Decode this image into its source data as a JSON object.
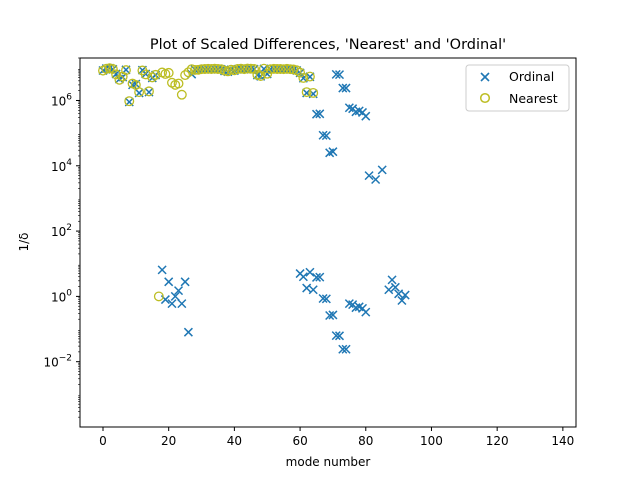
{
  "chart_data": {
    "type": "scatter",
    "title": "Plot of Scaled Differences, 'Nearest' and 'Ordinal'",
    "xlabel": "mode number",
    "ylabel": "1/δ",
    "xlim": [
      -7,
      144
    ],
    "ylim": [
      0.0001,
      20000000
    ],
    "yscale": "log",
    "grid": false,
    "legend_position": "top-right",
    "x_ticks": [
      0,
      20,
      40,
      60,
      80,
      100,
      120,
      140
    ],
    "y_ticks": [
      {
        "value": 0.01,
        "base": "10",
        "exp": "−2"
      },
      {
        "value": 1,
        "base": "10",
        "exp": "0"
      },
      {
        "value": 100,
        "base": "10",
        "exp": "2"
      },
      {
        "value": 10000,
        "base": "10",
        "exp": "4"
      },
      {
        "value": 1000000,
        "base": "10",
        "exp": "6"
      }
    ],
    "series": [
      {
        "name": "Ordinal",
        "marker": "x",
        "color": "#1f77b4",
        "points": [
          [
            0,
            8300000
          ],
          [
            1,
            9500000
          ],
          [
            2,
            9800000
          ],
          [
            3,
            9000000
          ],
          [
            4,
            6500000
          ],
          [
            5,
            4500000
          ],
          [
            6,
            5200000
          ],
          [
            7,
            8700000
          ],
          [
            8,
            900000
          ],
          [
            9,
            3000000
          ],
          [
            10,
            3200000
          ],
          [
            11,
            1700000
          ],
          [
            12,
            8500000
          ],
          [
            13,
            6500000
          ],
          [
            14,
            1800000
          ],
          [
            15,
            4900000
          ],
          [
            16,
            6000000
          ],
          [
            18,
            6.5
          ],
          [
            19,
            0.8
          ],
          [
            20,
            2.8
          ],
          [
            21,
            0.6
          ],
          [
            22,
            1.0
          ],
          [
            23,
            1.5
          ],
          [
            24,
            0.6
          ],
          [
            25,
            2.8
          ],
          [
            26,
            0.08
          ],
          [
            27,
            6400000
          ],
          [
            28,
            8800000
          ],
          [
            29,
            8900000
          ],
          [
            30,
            8900000
          ],
          [
            31,
            9000000
          ],
          [
            32,
            9100000
          ],
          [
            33,
            9000000
          ],
          [
            34,
            9200000
          ],
          [
            35,
            9100000
          ],
          [
            36,
            9000000
          ],
          [
            37,
            8000000
          ],
          [
            38,
            7600000
          ],
          [
            39,
            8700000
          ],
          [
            40,
            8200000
          ],
          [
            41,
            9100000
          ],
          [
            42,
            9300000
          ],
          [
            43,
            9000000
          ],
          [
            44,
            9400000
          ],
          [
            45,
            9300000
          ],
          [
            46,
            9100000
          ],
          [
            47,
            6000000
          ],
          [
            48,
            5500000
          ],
          [
            49,
            9300000
          ],
          [
            50,
            6500000
          ],
          [
            51,
            9000000
          ],
          [
            52,
            9200000
          ],
          [
            53,
            9100000
          ],
          [
            54,
            9100000
          ],
          [
            55,
            9000000
          ],
          [
            56,
            9200000
          ],
          [
            57,
            9000000
          ],
          [
            58,
            8800000
          ],
          [
            59,
            8300000
          ],
          [
            60,
            7000000
          ],
          [
            61,
            4800000
          ],
          [
            62,
            1700000
          ],
          [
            63,
            5300000
          ],
          [
            64,
            1600000
          ],
          [
            65,
            380000
          ],
          [
            66,
            390000
          ],
          [
            67,
            86000
          ],
          [
            68,
            84000
          ],
          [
            69,
            25000
          ],
          [
            70,
            27000
          ],
          [
            71,
            6300000
          ],
          [
            72,
            6200000
          ],
          [
            73,
            2400000
          ],
          [
            74,
            2400000
          ],
          [
            75,
            600000
          ],
          [
            76,
            560000
          ],
          [
            77,
            450000
          ],
          [
            78,
            480000
          ],
          [
            79,
            430000
          ],
          [
            80,
            330000
          ],
          [
            81,
            5000
          ],
          [
            83,
            3800
          ],
          [
            85,
            7500
          ],
          [
            87,
            1.6
          ],
          [
            88,
            3.2
          ],
          [
            89,
            1.9
          ],
          [
            90,
            1.2
          ],
          [
            91,
            0.75
          ],
          [
            92,
            1.1
          ],
          [
            60,
            5
          ],
          [
            61,
            4
          ],
          [
            62,
            1.8
          ],
          [
            63,
            5.5
          ],
          [
            64,
            1.6
          ],
          [
            65,
            3.8
          ],
          [
            66,
            3.9
          ],
          [
            67,
            0.86
          ],
          [
            68,
            0.84
          ],
          [
            69,
            0.26
          ],
          [
            70,
            0.27
          ],
          [
            71,
            0.063
          ],
          [
            72,
            0.062
          ],
          [
            73,
            0.024
          ],
          [
            74,
            0.024
          ],
          [
            75,
            0.6
          ],
          [
            76,
            0.56
          ],
          [
            77,
            0.45
          ],
          [
            78,
            0.48
          ],
          [
            79,
            0.43
          ],
          [
            80,
            0.33
          ]
        ]
      },
      {
        "name": "Nearest",
        "marker": "o",
        "color": "#bcbd22",
        "points": [
          [
            0,
            8200000
          ],
          [
            1,
            9300000
          ],
          [
            2,
            9700000
          ],
          [
            3,
            9200000
          ],
          [
            4,
            6300000
          ],
          [
            5,
            4300000
          ],
          [
            6,
            5400000
          ],
          [
            7,
            8500000
          ],
          [
            8,
            950000
          ],
          [
            9,
            3300000
          ],
          [
            10,
            3000000
          ],
          [
            11,
            1800000
          ],
          [
            12,
            8300000
          ],
          [
            13,
            6300000
          ],
          [
            14,
            1900000
          ],
          [
            15,
            5100000
          ],
          [
            16,
            6100000
          ],
          [
            17,
            1.0
          ],
          [
            18,
            7200000
          ],
          [
            19,
            6500000
          ],
          [
            20,
            7000000
          ],
          [
            21,
            3500000
          ],
          [
            22,
            3000000
          ],
          [
            23,
            3300000
          ],
          [
            24,
            1500000
          ],
          [
            25,
            6000000
          ],
          [
            26,
            7300000
          ],
          [
            27,
            9100000
          ],
          [
            28,
            8600000
          ],
          [
            29,
            8700000
          ],
          [
            30,
            9100000
          ],
          [
            31,
            9200000
          ],
          [
            32,
            9300000
          ],
          [
            33,
            9200000
          ],
          [
            34,
            9400000
          ],
          [
            35,
            9200000
          ],
          [
            36,
            9100000
          ],
          [
            37,
            8200000
          ],
          [
            38,
            7800000
          ],
          [
            39,
            8800000
          ],
          [
            40,
            8400000
          ],
          [
            41,
            9200000
          ],
          [
            42,
            9400000
          ],
          [
            43,
            9100000
          ],
          [
            44,
            9500000
          ],
          [
            45,
            9400000
          ],
          [
            46,
            9200000
          ],
          [
            47,
            6100000
          ],
          [
            48,
            5600000
          ],
          [
            49,
            9400000
          ],
          [
            50,
            6600000
          ],
          [
            51,
            9100000
          ],
          [
            52,
            9300000
          ],
          [
            53,
            9200000
          ],
          [
            54,
            9200000
          ],
          [
            55,
            9100000
          ],
          [
            56,
            9300000
          ],
          [
            57,
            9100000
          ],
          [
            58,
            8900000
          ],
          [
            59,
            8400000
          ],
          [
            60,
            7100000
          ],
          [
            61,
            4900000
          ],
          [
            62,
            1800000
          ],
          [
            63,
            5400000
          ],
          [
            64,
            1700000
          ]
        ]
      }
    ]
  },
  "legend": {
    "ordinal_label": "Ordinal",
    "nearest_label": "Nearest"
  }
}
